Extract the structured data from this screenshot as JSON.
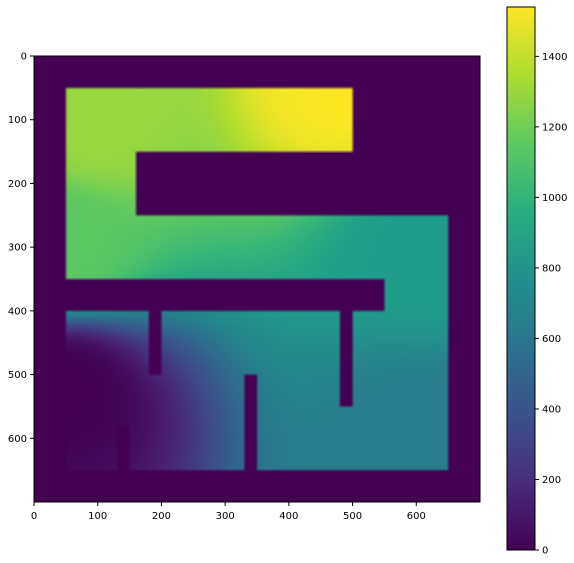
{
  "chart_data": {
    "type": "heatmap",
    "title": "",
    "xlabel": "",
    "ylabel": "",
    "image_extent": {
      "x": [
        0,
        700
      ],
      "y": [
        0,
        700
      ]
    },
    "y_axis_inverted": true,
    "x_ticks": [
      0,
      100,
      200,
      300,
      400,
      500,
      600
    ],
    "y_ticks": [
      0,
      100,
      200,
      300,
      400,
      500,
      600
    ],
    "colormap": "viridis",
    "background_value": 0,
    "colorbar": {
      "range": [
        0,
        1540
      ],
      "ticks": [
        0,
        200,
        400,
        600,
        800,
        1000,
        1200,
        1400
      ]
    },
    "free_region": [
      {
        "x0": 50,
        "x1": 500,
        "y0": 50,
        "y1": 150
      },
      {
        "x0": 50,
        "x1": 160,
        "y0": 150,
        "y1": 250
      },
      {
        "x0": 50,
        "x1": 650,
        "y0": 250,
        "y1": 350
      },
      {
        "x0": 550,
        "x1": 650,
        "y0": 350,
        "y1": 400
      },
      {
        "x0": 50,
        "x1": 650,
        "y0": 400,
        "y1": 650
      }
    ],
    "obstacles": [
      {
        "x0": 180,
        "x1": 200,
        "y0": 400,
        "y1": 500
      },
      {
        "x0": 480,
        "x1": 500,
        "y0": 400,
        "y1": 550
      },
      {
        "x0": 330,
        "x1": 350,
        "y0": 500,
        "y1": 650
      },
      {
        "x0": 130,
        "x1": 150,
        "y0": 580,
        "y1": 650
      }
    ],
    "value_points": [
      {
        "x": 50,
        "y": 520,
        "value": 0
      },
      {
        "x": 600,
        "y": 600,
        "value": 650
      },
      {
        "x": 600,
        "y": 300,
        "value": 850
      },
      {
        "x": 50,
        "y": 300,
        "value": 1150
      },
      {
        "x": 100,
        "y": 100,
        "value": 1300
      },
      {
        "x": 500,
        "y": 50,
        "value": 1540
      }
    ]
  }
}
